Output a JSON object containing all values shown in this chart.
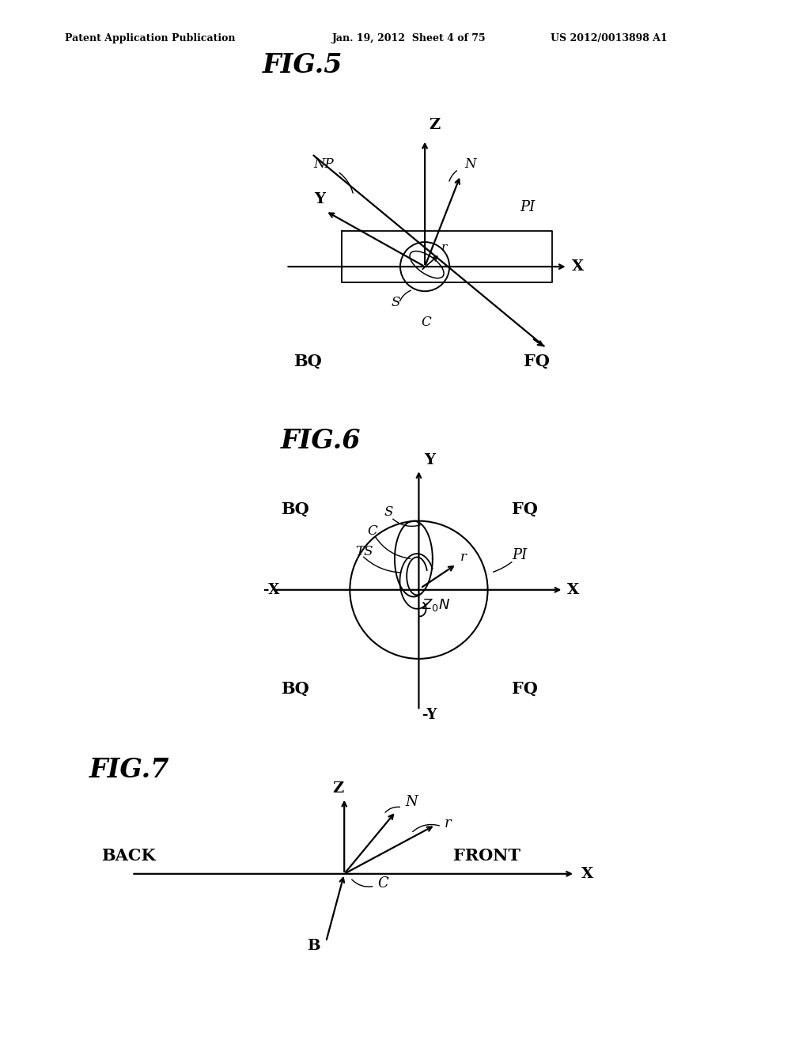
{
  "header_left": "Patent Application Publication",
  "header_mid": "Jan. 19, 2012  Sheet 4 of 75",
  "header_right": "US 2012/0013898 A1",
  "bg_color": "#ffffff"
}
